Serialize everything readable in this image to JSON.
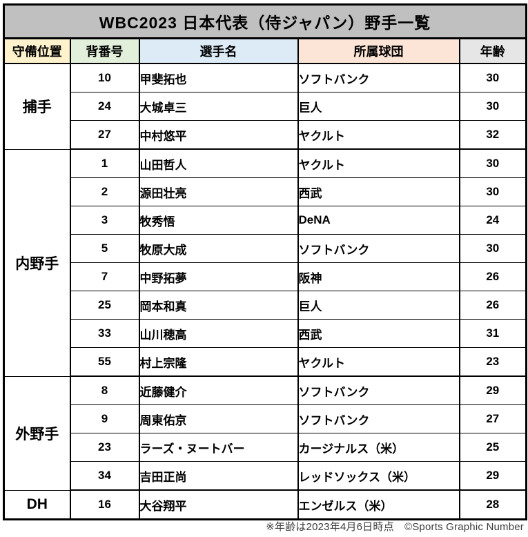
{
  "chart_data": {
    "type": "table",
    "title": "WBC2023 日本代表（侍ジャパン）野手一覧",
    "columns": [
      "守備位置",
      "背番号",
      "選手名",
      "所属球団",
      "年齢"
    ],
    "groups": [
      {
        "position": "捕手",
        "rows": [
          {
            "number": "10",
            "name": "甲斐拓也",
            "team": "ソフトバンク",
            "age": "30"
          },
          {
            "number": "24",
            "name": "大城卓三",
            "team": "巨人",
            "age": "30"
          },
          {
            "number": "27",
            "name": "中村悠平",
            "team": "ヤクルト",
            "age": "32"
          }
        ]
      },
      {
        "position": "内野手",
        "rows": [
          {
            "number": "1",
            "name": "山田哲人",
            "team": "ヤクルト",
            "age": "30"
          },
          {
            "number": "2",
            "name": "源田壮亮",
            "team": "西武",
            "age": "30"
          },
          {
            "number": "3",
            "name": "牧秀悟",
            "team": "DeNA",
            "age": "24"
          },
          {
            "number": "5",
            "name": "牧原大成",
            "team": "ソフトバンク",
            "age": "30"
          },
          {
            "number": "7",
            "name": "中野拓夢",
            "team": "阪神",
            "age": "26"
          },
          {
            "number": "25",
            "name": "岡本和真",
            "team": "巨人",
            "age": "26"
          },
          {
            "number": "33",
            "name": "山川穂高",
            "team": "西武",
            "age": "31"
          },
          {
            "number": "55",
            "name": "村上宗隆",
            "team": "ヤクルト",
            "age": "23"
          }
        ]
      },
      {
        "position": "外野手",
        "rows": [
          {
            "number": "8",
            "name": "近藤健介",
            "team": "ソフトバンク",
            "age": "29"
          },
          {
            "number": "9",
            "name": "周東佑京",
            "team": "ソフトバンク",
            "age": "27"
          },
          {
            "number": "23",
            "name": "ラーズ・ヌートバー",
            "team": "カージナルス（米）",
            "age": "25"
          },
          {
            "number": "34",
            "name": "吉田正尚",
            "team": "レッドソックス（米）",
            "age": "29"
          }
        ]
      },
      {
        "position": "DH",
        "rows": [
          {
            "number": "16",
            "name": "大谷翔平",
            "team": "エンゼルス（米）",
            "age": "28"
          }
        ]
      }
    ],
    "footnote": "※年齢は2023年4月6日時点　©Sports Graphic Number"
  },
  "colors": {
    "title-bg": "#c0c0c0",
    "pos-header-bg": "#fff2cc",
    "num-header-bg": "#e2efda",
    "name-header-bg": "#ddebf7",
    "team-header-bg": "#fce4d6",
    "age-header-bg": "#e7e6e6",
    "border": "#000000"
  }
}
